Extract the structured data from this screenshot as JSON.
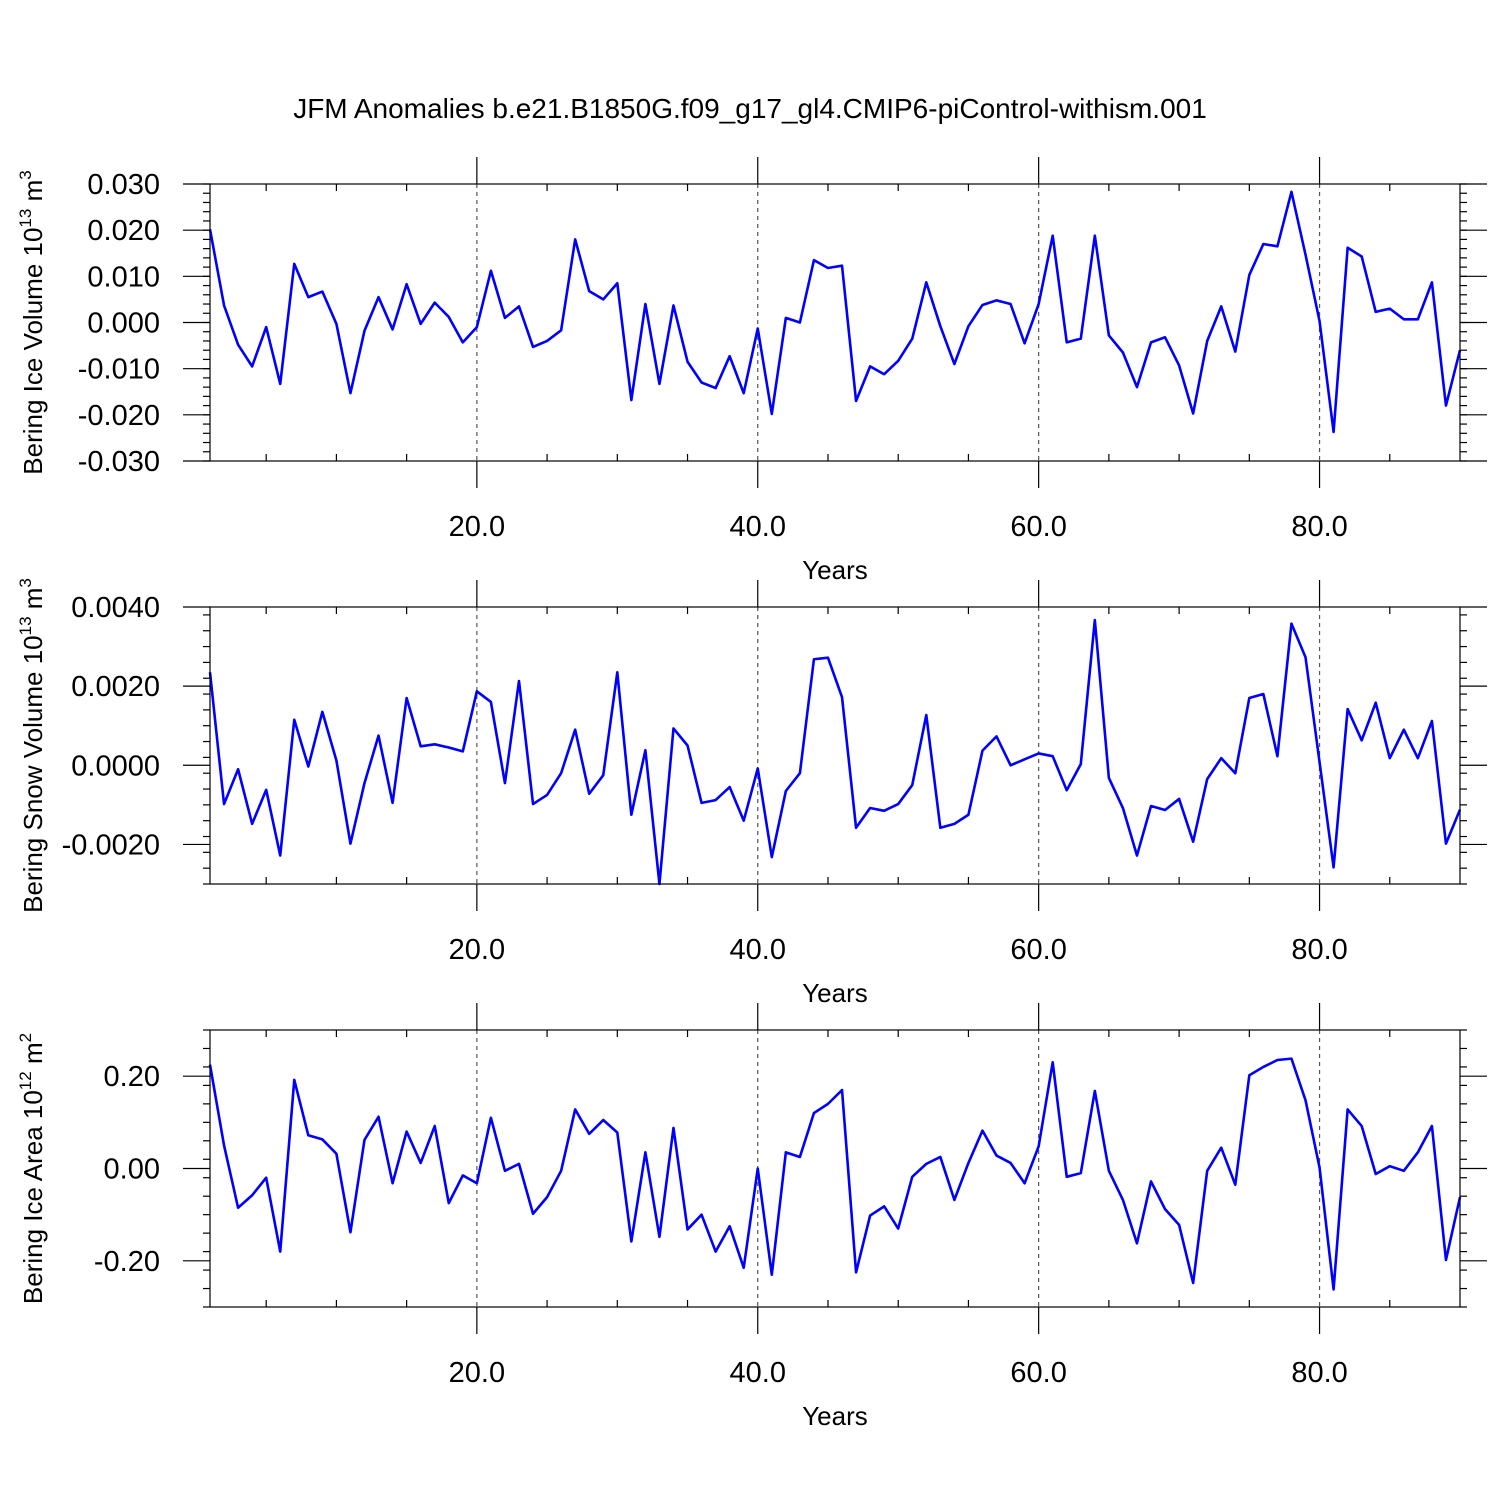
{
  "figure": {
    "title": "JFM Anomalies b.e21.B1850G.f09_g17_gl4.CMIP6-piControl-withism.001"
  },
  "chart_data": [
    {
      "type": "line",
      "xlabel": "Years",
      "ylabel": "Bering Ice Volume 10",
      "ylabel_sup": "13",
      "ylabel_unit": " m",
      "ylabel_unit_sup": "3",
      "xlim": [
        1,
        90
      ],
      "ylim": [
        -0.03,
        0.03
      ],
      "xticks": [
        20,
        40,
        60,
        80
      ],
      "xtick_labels": [
        "20.0",
        "40.0",
        "60.0",
        "80.0"
      ],
      "yticks": [
        -0.03,
        -0.02,
        -0.01,
        0.0,
        0.01,
        0.02,
        0.03
      ],
      "ytick_labels": [
        "-0.030",
        "-0.020",
        "-0.010",
        "0.000",
        "0.010",
        "0.020",
        "0.030"
      ],
      "grid": "x-dashed",
      "series": [
        {
          "color": "#0000ff",
          "x": [
            1,
            2,
            3,
            4,
            5,
            6,
            7,
            8,
            9,
            10,
            11,
            12,
            13,
            14,
            15,
            16,
            17,
            18,
            19,
            20,
            21,
            22,
            23,
            24,
            25,
            26,
            27,
            28,
            29,
            30,
            31,
            32,
            33,
            34,
            35,
            36,
            37,
            38,
            39,
            40,
            41,
            42,
            43,
            44,
            45,
            46,
            47,
            48,
            49,
            50,
            51,
            52,
            53,
            54,
            55,
            56,
            57,
            58,
            59,
            60,
            61,
            62,
            63,
            64,
            65,
            66,
            67,
            68,
            69,
            70,
            71,
            72,
            73,
            74,
            75,
            76,
            77,
            78,
            79,
            80,
            81,
            82,
            83,
            84,
            85,
            86,
            87,
            88,
            89,
            90
          ],
          "values": [
            0.0202,
            0.0037,
            -0.0048,
            -0.0095,
            -0.001,
            -0.0133,
            0.0127,
            0.0055,
            0.0067,
            -0.0003,
            -0.0153,
            -0.0018,
            0.0055,
            -0.0015,
            0.0083,
            -0.0003,
            0.0043,
            0.0012,
            -0.0043,
            -0.001,
            0.0112,
            0.001,
            0.0035,
            -0.0053,
            -0.004,
            -0.0017,
            0.018,
            0.0068,
            0.005,
            0.0085,
            -0.0168,
            0.004,
            -0.0133,
            0.0037,
            -0.0085,
            -0.013,
            -0.0142,
            -0.0073,
            -0.0153,
            -0.0013,
            -0.0198,
            0.001,
            0.0,
            0.0135,
            0.0118,
            0.0123,
            -0.017,
            -0.0095,
            -0.0112,
            -0.0083,
            -0.0035,
            0.0087,
            -0.0008,
            -0.009,
            -0.0008,
            0.0038,
            0.0048,
            0.004,
            -0.0045,
            0.004,
            0.0188,
            -0.0043,
            -0.0035,
            0.0188,
            -0.0028,
            -0.0065,
            -0.014,
            -0.0043,
            -0.0032,
            -0.0093,
            -0.0197,
            -0.004,
            0.0035,
            -0.0063,
            0.0103,
            0.017,
            0.0165,
            0.0283,
            0.0147,
            0.0003,
            -0.0237,
            0.0162,
            0.0143,
            0.0023,
            0.003,
            0.0007,
            0.0007,
            0.0087,
            -0.018,
            -0.006
          ]
        }
      ]
    },
    {
      "type": "line",
      "xlabel": "Years",
      "ylabel": "Bering Snow Volume 10",
      "ylabel_sup": "13",
      "ylabel_unit": " m",
      "ylabel_unit_sup": "3",
      "xlim": [
        1,
        90
      ],
      "ylim": [
        -0.003,
        0.004
      ],
      "xticks": [
        20,
        40,
        60,
        80
      ],
      "xtick_labels": [
        "20.0",
        "40.0",
        "60.0",
        "80.0"
      ],
      "yticks": [
        -0.002,
        0.0,
        0.002,
        0.004
      ],
      "ytick_labels": [
        "-0.0020",
        "0.0000",
        "0.0020",
        "0.0040"
      ],
      "grid": "x-dashed",
      "series": [
        {
          "color": "#0000ff",
          "x": [
            1,
            2,
            3,
            4,
            5,
            6,
            7,
            8,
            9,
            10,
            11,
            12,
            13,
            14,
            15,
            16,
            17,
            18,
            19,
            20,
            21,
            22,
            23,
            24,
            25,
            26,
            27,
            28,
            29,
            30,
            31,
            32,
            33,
            34,
            35,
            36,
            37,
            38,
            39,
            40,
            41,
            42,
            43,
            44,
            45,
            46,
            47,
            48,
            49,
            50,
            51,
            52,
            53,
            54,
            55,
            56,
            57,
            58,
            59,
            60,
            61,
            62,
            63,
            64,
            65,
            66,
            67,
            68,
            69,
            70,
            71,
            72,
            73,
            74,
            75,
            76,
            77,
            78,
            79,
            80,
            81,
            82,
            83,
            84,
            85,
            86,
            87,
            88,
            89,
            90
          ],
          "values": [
            0.00235,
            -0.00098,
            -0.0001,
            -0.00148,
            -0.00062,
            -0.00228,
            0.00115,
            -3e-05,
            0.00135,
            0.00012,
            -0.00198,
            -0.00045,
            0.00075,
            -0.00095,
            0.0017,
            0.00048,
            0.00053,
            0.00045,
            0.00035,
            0.00187,
            0.0016,
            -0.00045,
            0.00213,
            -0.00098,
            -0.00075,
            -0.0002,
            0.0009,
            -0.00072,
            -0.00025,
            0.00235,
            -0.00125,
            0.00038,
            -0.003,
            0.00093,
            0.0005,
            -0.00095,
            -0.00088,
            -0.00055,
            -0.0014,
            -8e-05,
            -0.00232,
            -0.00065,
            -0.0002,
            0.00268,
            0.00272,
            0.00172,
            -0.00158,
            -0.00108,
            -0.00115,
            -0.00098,
            -0.0005,
            0.00127,
            -0.00158,
            -0.00148,
            -0.00125,
            0.00037,
            0.00073,
            0.0,
            0.00015,
            0.0003,
            0.00023,
            -0.00063,
            3e-05,
            0.00367,
            -0.00032,
            -0.00108,
            -0.00228,
            -0.00103,
            -0.00113,
            -0.00085,
            -0.00193,
            -0.00035,
            0.00018,
            -0.0002,
            0.0017,
            0.0018,
            0.00023,
            0.00358,
            0.00273,
            8e-05,
            -0.00258,
            0.00142,
            0.00063,
            0.00158,
            0.00018,
            0.0009,
            0.00018,
            0.00112,
            -0.00198,
            -0.00112
          ]
        }
      ]
    },
    {
      "type": "line",
      "xlabel": "Years",
      "ylabel": "Bering Ice Area 10",
      "ylabel_sup": "12",
      "ylabel_unit": " m",
      "ylabel_unit_sup": "2",
      "xlim": [
        1,
        90
      ],
      "ylim": [
        -0.3,
        0.3
      ],
      "xticks": [
        20,
        40,
        60,
        80
      ],
      "xtick_labels": [
        "20.0",
        "40.0",
        "60.0",
        "80.0"
      ],
      "yticks": [
        -0.2,
        0.0,
        0.2
      ],
      "ytick_labels": [
        "-0.20",
        "0.00",
        "0.20"
      ],
      "grid": "x-dashed",
      "series": [
        {
          "color": "#0000ff",
          "x": [
            1,
            2,
            3,
            4,
            5,
            6,
            7,
            8,
            9,
            10,
            11,
            12,
            13,
            14,
            15,
            16,
            17,
            18,
            19,
            20,
            21,
            22,
            23,
            24,
            25,
            26,
            27,
            28,
            29,
            30,
            31,
            32,
            33,
            34,
            35,
            36,
            37,
            38,
            39,
            40,
            41,
            42,
            43,
            44,
            45,
            46,
            47,
            48,
            49,
            50,
            51,
            52,
            53,
            54,
            55,
            56,
            57,
            58,
            59,
            60,
            61,
            62,
            63,
            64,
            65,
            66,
            67,
            68,
            69,
            70,
            71,
            72,
            73,
            74,
            75,
            76,
            77,
            78,
            79,
            80,
            81,
            82,
            83,
            84,
            85,
            86,
            87,
            88,
            89,
            90
          ],
          "values": [
            0.225,
            0.05,
            -0.085,
            -0.058,
            -0.02,
            -0.18,
            0.192,
            0.072,
            0.063,
            0.032,
            -0.138,
            0.062,
            0.112,
            -0.032,
            0.08,
            0.012,
            0.092,
            -0.075,
            -0.015,
            -0.032,
            0.11,
            -0.005,
            0.01,
            -0.098,
            -0.062,
            -0.005,
            0.128,
            0.075,
            0.105,
            0.078,
            -0.158,
            0.035,
            -0.148,
            0.088,
            -0.132,
            -0.1,
            -0.18,
            -0.125,
            -0.215,
            0.0,
            -0.23,
            0.035,
            0.025,
            0.12,
            0.14,
            0.17,
            -0.225,
            -0.102,
            -0.082,
            -0.13,
            -0.018,
            0.01,
            0.025,
            -0.068,
            0.012,
            0.082,
            0.028,
            0.012,
            -0.032,
            0.048,
            0.23,
            -0.018,
            -0.01,
            0.168,
            -0.005,
            -0.068,
            -0.162,
            -0.028,
            -0.088,
            -0.122,
            -0.248,
            -0.005,
            0.045,
            -0.035,
            0.202,
            0.22,
            0.235,
            0.238,
            0.148,
            0.002,
            -0.262,
            0.128,
            0.092,
            -0.012,
            0.005,
            -0.005,
            0.035,
            0.092,
            -0.198,
            -0.062
          ]
        }
      ]
    }
  ]
}
